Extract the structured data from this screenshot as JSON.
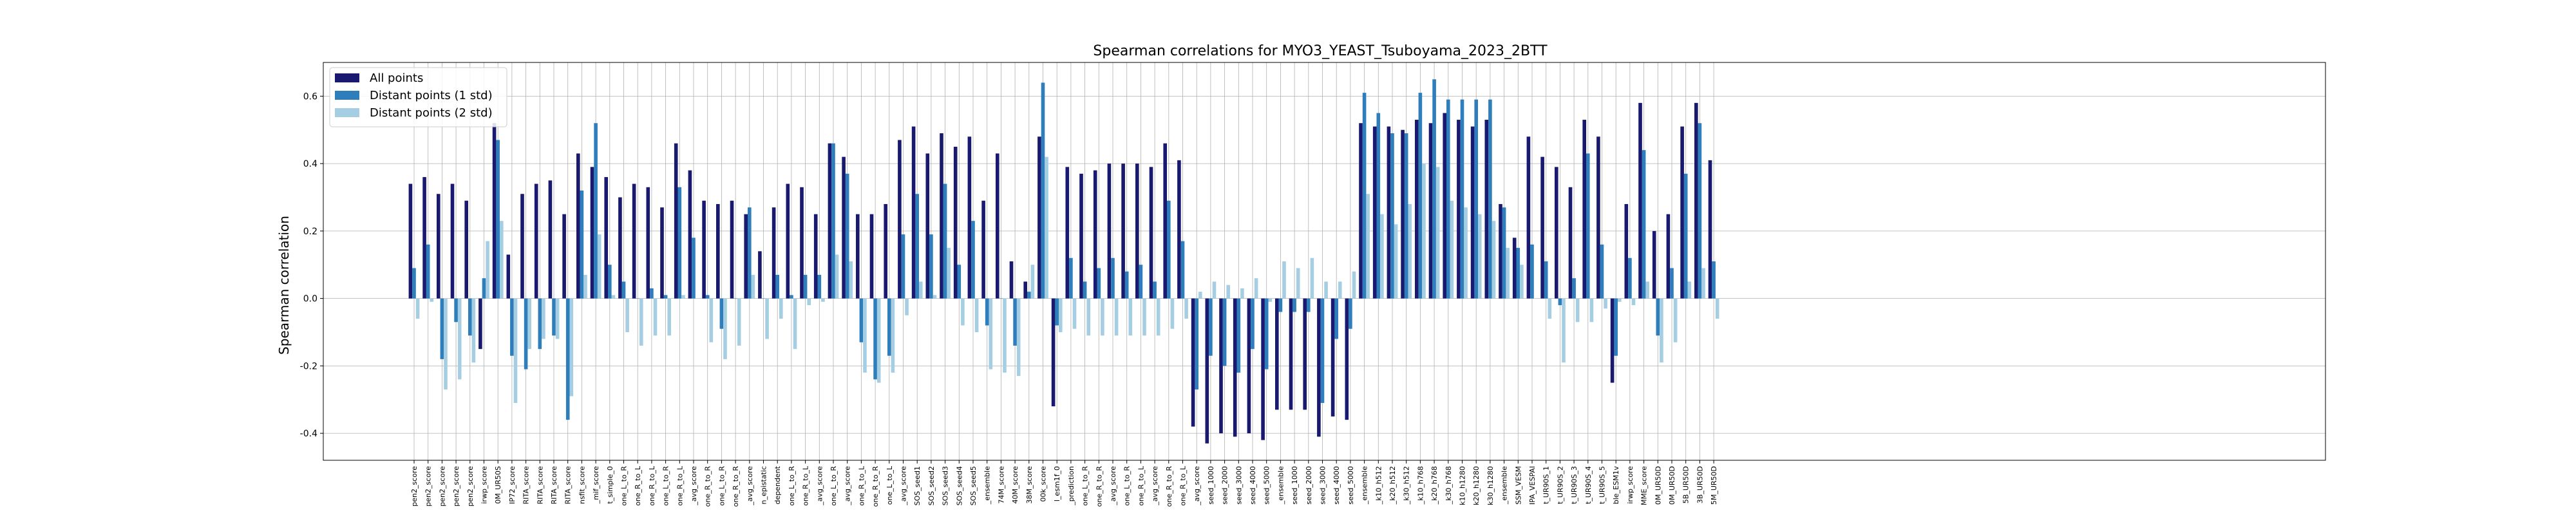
{
  "chart_data": {
    "type": "bar",
    "title": "Spearman correlations for MYO3_YEAST_Tsuboyama_2023_2BTT",
    "xlabel": "",
    "ylabel": "Spearman correlation",
    "ylim": [
      -0.48,
      0.7
    ],
    "yticks": [
      -0.4,
      -0.2,
      0.0,
      0.2,
      0.4,
      0.6
    ],
    "grid": true,
    "legend_position": "top-left",
    "categories": [
      "pen2_score",
      "pen2_score",
      "pen2_score",
      "pen2_score",
      "pen2_score",
      "irwp_score",
      "0M_UR50S",
      "IP72_score",
      "RITA_score",
      "RITA_score",
      "RITA_score",
      "RITA_score",
      "nsfit_score",
      "_mif_score",
      "t_simple_0",
      "one_L_to_R",
      "one_R_to_L",
      "one_R_to_L",
      "one_L_to_R",
      "one_R_to_L",
      "_avg_score",
      "one_R_to_R",
      "one_L_to_R",
      "one_R_to_R",
      "_avg_score",
      "n_epistatic",
      "dependent",
      "one_L_to_R",
      "one_R_to_L",
      "_avg_score",
      "one_L_to_R",
      "_avg_score",
      "one_R_to_L",
      "one_R_to_R",
      "one_L_to_L",
      "_avg_score",
      "SOS_seed1",
      "SOS_seed2",
      "SOS_seed3",
      "SOS_seed4",
      "SOS_seed5",
      "_ensemble",
      "74M_score",
      "40M_score",
      "38M_score",
      "00k_score",
      "l_esm1f_0",
      "_prediction",
      "one_L_to_R",
      "one_R_to_R",
      "_avg_score",
      "one_L_to_R",
      "one_R_to_L",
      "_avg_score",
      "one_R_to_R",
      "one_R_to_L",
      "_avg_score",
      "seed_1000",
      "seed_2000",
      "seed_3000",
      "seed_4000",
      "seed_5000",
      "_ensemble",
      "seed_1000",
      "seed_2000",
      "seed_3000",
      "seed_4000",
      "seed_5000",
      "_ensemble",
      "_k10_h512",
      "_k20_h512",
      "_k30_h512",
      "_k10_h768",
      "_k20_h768",
      "_k30_h768",
      "k10_h1280",
      "k20_h1280",
      "k30_h1280",
      "_ensemble",
      "SSM_VESM",
      "IPA_VESPAl",
      "t_UR90S_1",
      "t_UR90S_2",
      "t_UR90S_3",
      "t_UR90S_4",
      "t_UR90S_5",
      "ble_ESM1v",
      "irwp_score",
      "MME_score",
      "0M_UR50D",
      "0M_UR50D",
      "5B_UR50D",
      "3B_UR50D",
      "5M_UR50D"
    ],
    "series": [
      {
        "name": "All points",
        "color": "#191970",
        "values": [
          0.34,
          0.36,
          0.31,
          0.34,
          0.29,
          -0.15,
          0.52,
          0.13,
          0.31,
          0.34,
          0.35,
          0.25,
          0.43,
          0.39,
          0.36,
          0.3,
          0.34,
          0.33,
          0.27,
          0.46,
          0.38,
          0.29,
          0.28,
          0.29,
          0.25,
          0.14,
          0.27,
          0.34,
          0.33,
          0.25,
          0.46,
          0.42,
          0.25,
          0.25,
          0.28,
          0.47,
          0.51,
          0.43,
          0.49,
          0.45,
          0.48,
          0.29,
          0.43,
          0.11,
          0.05,
          0.48,
          -0.32,
          0.39,
          0.37,
          0.38,
          0.4,
          0.4,
          0.4,
          0.39,
          0.46,
          0.41,
          -0.38,
          -0.43,
          -0.4,
          -0.41,
          -0.4,
          -0.42,
          -0.33,
          -0.33,
          -0.33,
          -0.41,
          -0.35,
          -0.36,
          0.52,
          0.51,
          0.51,
          0.5,
          0.53,
          0.52,
          0.55,
          0.53,
          0.51,
          0.53,
          0.28,
          0.18,
          0.48,
          0.42,
          0.39,
          0.33,
          0.53,
          0.48,
          -0.25,
          0.28,
          0.58,
          0.2,
          0.25,
          0.51,
          0.58,
          0.41
        ]
      },
      {
        "name": "Distant points (1 std)",
        "color": "#2e7ebc",
        "values": [
          0.09,
          0.16,
          -0.18,
          -0.07,
          -0.11,
          0.06,
          0.47,
          -0.17,
          -0.21,
          -0.15,
          -0.11,
          -0.36,
          0.32,
          0.52,
          0.1,
          0.05,
          0.0,
          0.03,
          0.01,
          0.33,
          0.18,
          0.01,
          -0.09,
          0.0,
          0.27,
          0.0,
          0.07,
          0.01,
          0.07,
          0.07,
          0.46,
          0.37,
          -0.13,
          -0.24,
          -0.17,
          0.19,
          0.31,
          0.19,
          0.34,
          0.1,
          0.23,
          -0.08,
          0.0,
          -0.14,
          0.02,
          0.64,
          -0.08,
          0.12,
          0.05,
          0.09,
          0.12,
          0.08,
          0.1,
          0.05,
          0.29,
          0.17,
          -0.27,
          -0.17,
          -0.2,
          -0.22,
          -0.15,
          -0.21,
          -0.04,
          -0.04,
          -0.04,
          -0.31,
          -0.12,
          -0.09,
          0.61,
          0.55,
          0.49,
          0.49,
          0.61,
          0.65,
          0.59,
          0.59,
          0.59,
          0.59,
          0.27,
          0.15,
          0.16,
          0.11,
          -0.02,
          0.06,
          0.43,
          0.16,
          -0.17,
          0.12,
          0.44,
          -0.11,
          0.09,
          0.37,
          0.52,
          0.11
        ]
      },
      {
        "name": "Distant points (2 std)",
        "color": "#a6cee3",
        "values": [
          -0.06,
          -0.01,
          -0.27,
          -0.24,
          -0.19,
          0.17,
          0.23,
          -0.31,
          -0.15,
          -0.12,
          -0.12,
          -0.29,
          0.07,
          0.19,
          0.01,
          -0.1,
          -0.14,
          -0.11,
          -0.11,
          0.01,
          0.0,
          -0.13,
          -0.18,
          -0.14,
          0.07,
          -0.12,
          -0.06,
          -0.15,
          -0.02,
          -0.01,
          0.13,
          0.11,
          -0.22,
          -0.25,
          -0.22,
          -0.05,
          0.05,
          0.01,
          0.15,
          -0.08,
          -0.1,
          -0.21,
          -0.22,
          -0.23,
          0.1,
          0.42,
          -0.1,
          -0.09,
          -0.11,
          -0.11,
          -0.11,
          -0.11,
          -0.11,
          -0.11,
          -0.09,
          -0.06,
          0.02,
          0.05,
          0.04,
          0.03,
          0.06,
          -0.01,
          0.11,
          0.09,
          0.12,
          0.05,
          0.05,
          0.08,
          0.31,
          0.25,
          0.22,
          0.28,
          0.4,
          0.39,
          0.29,
          0.27,
          0.25,
          0.23,
          0.15,
          0.1,
          0.0,
          -0.06,
          -0.19,
          -0.07,
          -0.07,
          -0.03,
          -0.01,
          -0.02,
          0.05,
          -0.19,
          -0.13,
          0.05,
          0.09,
          -0.06
        ]
      }
    ]
  }
}
